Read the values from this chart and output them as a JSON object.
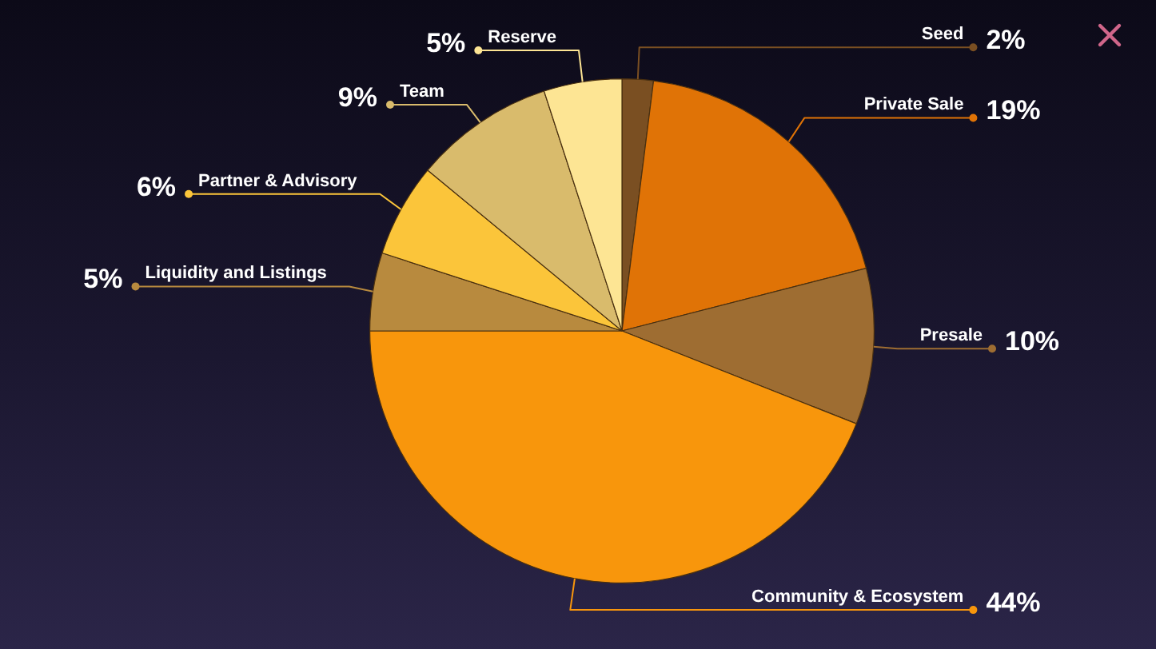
{
  "chart_data": {
    "type": "pie",
    "categories": [
      "Seed",
      "Private Sale",
      "Presale",
      "Community & Ecosystem",
      "Liquidity and Listings",
      "Partner & Advisory",
      "Team",
      "Reserve"
    ],
    "values": [
      2,
      19,
      10,
      44,
      5,
      6,
      9,
      5
    ],
    "colors": [
      "#7a4f22",
      "#e07306",
      "#9e6d32",
      "#f8960c",
      "#b88a3e",
      "#fbc53a",
      "#d9bb6c",
      "#fde594"
    ],
    "value_labels": [
      "2%",
      "19%",
      "10%",
      "44%",
      "5%",
      "6%",
      "9%",
      "5%"
    ]
  }
}
